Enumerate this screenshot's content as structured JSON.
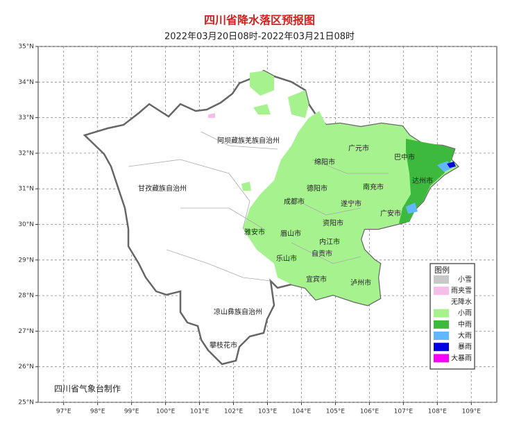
{
  "title": "四川省降水落区预报图",
  "subtitle": "2022年03月20日08时-2022年03月21日08时",
  "credit": "四川省气象台制作",
  "map": {
    "xlim": [
      96.25,
      109.75
    ],
    "ylim": [
      25,
      35
    ],
    "xticks": [
      {
        "value": 97,
        "label": "97°E"
      },
      {
        "value": 98,
        "label": "98°E"
      },
      {
        "value": 99,
        "label": "99°E"
      },
      {
        "value": 100,
        "label": "100°E"
      },
      {
        "value": 101,
        "label": "101°E"
      },
      {
        "value": 102,
        "label": "102°E"
      },
      {
        "value": 103,
        "label": "103°E"
      },
      {
        "value": 104,
        "label": "104°E"
      },
      {
        "value": 105,
        "label": "105°E"
      },
      {
        "value": 106,
        "label": "106°E"
      },
      {
        "value": 107,
        "label": "107°E"
      },
      {
        "value": 108,
        "label": "108°E"
      },
      {
        "value": 109,
        "label": "109°E"
      }
    ],
    "yticks": [
      {
        "value": 25,
        "label": "25°N"
      },
      {
        "value": 26,
        "label": "26°N"
      },
      {
        "value": 27,
        "label": "27°N"
      },
      {
        "value": 28,
        "label": "28°N"
      },
      {
        "value": 29,
        "label": "29°N"
      },
      {
        "value": 30,
        "label": "30°N"
      },
      {
        "value": 31,
        "label": "31°N"
      },
      {
        "value": 32,
        "label": "32°N"
      },
      {
        "value": 33,
        "label": "33°N"
      },
      {
        "value": 34,
        "label": "34°N"
      },
      {
        "value": 35,
        "label": "35°N"
      }
    ],
    "grid": true
  },
  "places": [
    "阿坝藏族羌族自治州",
    "甘孜藏族自治州",
    "广元市",
    "巴中市",
    "绵阳市",
    "达州市",
    "德阳市",
    "南充市",
    "成都市",
    "遂宁市",
    "广安市",
    "雅安市",
    "眉山市",
    "资阳市",
    "内江市",
    "乐山市",
    "自贡市",
    "宜宾市",
    "泸州市",
    "凉山彝族自治州",
    "攀枝花市"
  ],
  "legend": {
    "title": "图例",
    "items": [
      {
        "label": "小雪",
        "color": "#c8c8c8"
      },
      {
        "label": "雨夹雪",
        "color": "#f7bdea"
      },
      {
        "label": "无降水",
        "color": "#ffffff"
      },
      {
        "label": "小雨",
        "color": "#a6f28f"
      },
      {
        "label": "中雨",
        "color": "#3dba3d"
      },
      {
        "label": "大雨",
        "color": "#61b8ff"
      },
      {
        "label": "暴雨",
        "color": "#0000e1"
      },
      {
        "label": "大暴雨",
        "color": "#fa00fa"
      }
    ]
  }
}
